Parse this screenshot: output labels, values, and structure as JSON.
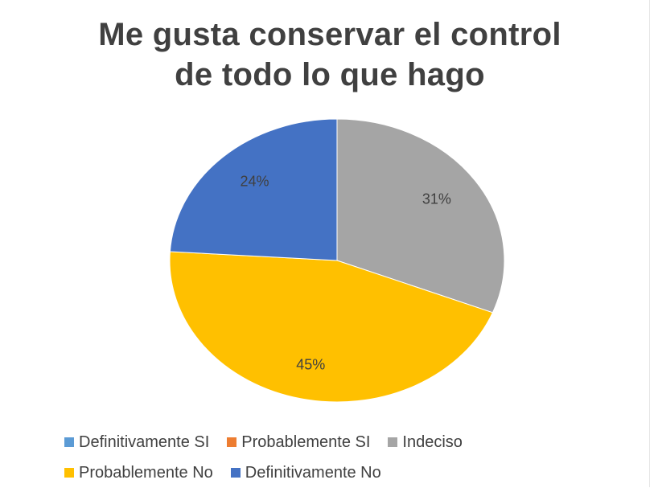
{
  "chart_data": {
    "type": "pie",
    "title": "Me gusta conservar el control de todo lo que hago",
    "legend_position": "bottom",
    "slices": [
      {
        "label": "Definitivamente SI",
        "value": 0,
        "color": "#5B9BD5"
      },
      {
        "label": "Probablemente SI",
        "value": 0,
        "color": "#ED7D31"
      },
      {
        "label": "Indeciso",
        "value": 31,
        "color": "#A5A5A5",
        "data_label": "31%"
      },
      {
        "label": "Probablemente No",
        "value": 45,
        "color": "#FFC000",
        "data_label": "45%"
      },
      {
        "label": "Definitivamente No",
        "value": 24,
        "color": "#4472C4",
        "data_label": "24%"
      }
    ]
  }
}
